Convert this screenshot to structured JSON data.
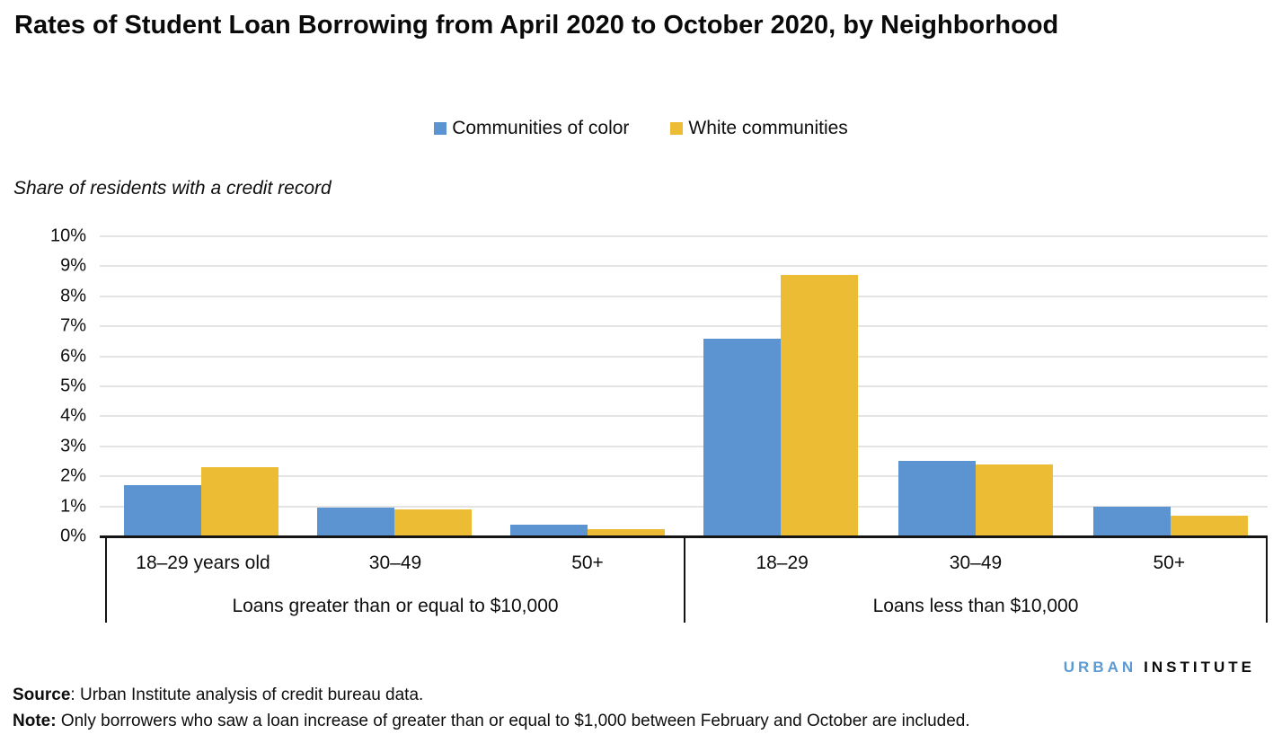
{
  "title": "Rates of Student Loan Borrowing from April 2020 to October 2020, by Neighborhood",
  "subtitle": "Share of residents with a credit record",
  "legend": [
    {
      "label": "Communities of color",
      "color": "#5B94D0"
    },
    {
      "label": "White communities",
      "color": "#EBBC34"
    }
  ],
  "chart_data": {
    "type": "bar",
    "title": "Rates of Student Loan Borrowing from April 2020 to October 2020, by Neighborhood",
    "ylabel": "Share of residents with a credit record",
    "ylim": [
      0,
      10
    ],
    "ytick_step": 1,
    "ytick_labels": [
      "10%",
      "9%",
      "8%",
      "7%",
      "6%",
      "5%",
      "4%",
      "3%",
      "2%",
      "1%",
      "0%"
    ],
    "grid": true,
    "legend_position": "top-center",
    "groups": [
      {
        "label": "Loans greater than or equal to $10,000",
        "categories": [
          "18–29 years old",
          "30–49",
          "50+"
        ],
        "series": [
          {
            "name": "Communities of color",
            "color": "#5B94D0",
            "values": [
              1.7,
              0.95,
              0.4
            ]
          },
          {
            "name": "White communities",
            "color": "#EBBC34",
            "values": [
              2.3,
              0.9,
              0.25
            ]
          }
        ]
      },
      {
        "label": "Loans less than $10,000",
        "categories": [
          "18–29",
          "30–49",
          "50+"
        ],
        "series": [
          {
            "name": "Communities of color",
            "color": "#5B94D0",
            "values": [
              6.6,
              2.5,
              1.0
            ]
          },
          {
            "name": "White communities",
            "color": "#EBBC34",
            "values": [
              8.7,
              2.4,
              0.7
            ]
          }
        ]
      }
    ]
  },
  "footer": {
    "logo_urban": "URBAN",
    "logo_institute": "INSTITUTE",
    "source_label": "Source",
    "source_text": ": Urban Institute analysis of credit bureau data.",
    "note_label": "Note:",
    "note_text": " Only borrowers who saw a loan increase of greater than or equal to $1,000 between February and October are included."
  }
}
